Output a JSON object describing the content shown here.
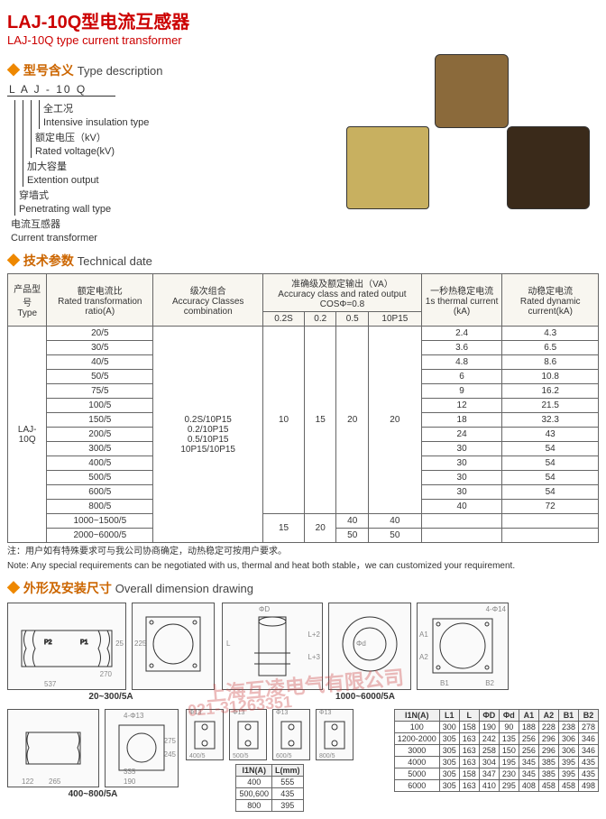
{
  "title_cn": "LAJ-10Q型电流互感器",
  "title_en": "LAJ-10Q type current transformer",
  "sections": {
    "typedesc_cn": "型号含义",
    "typedesc_en": "Type description",
    "tech_cn": "技术参数",
    "tech_en": "Technical date",
    "dim_cn": "外形及安装尺寸",
    "dim_en": "Overall dimension drawing"
  },
  "type_letters": "L  A  J  -  10  Q",
  "type_legend": [
    {
      "cn": "全工况",
      "en": "Intensive insulation type"
    },
    {
      "cn": "额定电压（kV）",
      "en": "Rated voltage(kV)"
    },
    {
      "cn": "加大容量",
      "en": "Extention output"
    },
    {
      "cn": "穿墙式",
      "en": "Penetrating wall type"
    },
    {
      "cn": "电流互感器",
      "en": "Current transformer"
    }
  ],
  "tech_header": {
    "type_cn": "产品型号",
    "type_en": "Type",
    "ratio_cn": "额定电流比",
    "ratio_en": "Rated transformation ratio(A)",
    "acc_cn": "级次组合",
    "acc_en": "Accuracy Classes combination",
    "out_cn": "准确级及额定输出（VA）",
    "out_en": "Accuracy class and rated output COSΦ=0.8",
    "out_cols": [
      "0.2S",
      "0.2",
      "0.5",
      "10P15"
    ],
    "th1s_cn": "一秒热稳定电流",
    "th1s_en": "1s thermal current (kA)",
    "dyn_cn": "动稳定电流",
    "dyn_en": "Rated dynamic current(kA)"
  },
  "type_name": "LAJ-10Q",
  "acc_combos": [
    "0.2S/10P15",
    "0.2/10P15",
    "0.5/10P15",
    "10P15/10P15"
  ],
  "out_vals1": [
    "10",
    "15",
    "20",
    "20"
  ],
  "tech_rows": [
    {
      "r": "20/5",
      "th": "2.4",
      "dy": "4.3"
    },
    {
      "r": "30/5",
      "th": "3.6",
      "dy": "6.5"
    },
    {
      "r": "40/5",
      "th": "4.8",
      "dy": "8.6"
    },
    {
      "r": "50/5",
      "th": "6",
      "dy": "10.8"
    },
    {
      "r": "75/5",
      "th": "9",
      "dy": "16.2"
    },
    {
      "r": "100/5",
      "th": "12",
      "dy": "21.5"
    },
    {
      "r": "150/5",
      "th": "18",
      "dy": "32.3"
    },
    {
      "r": "200/5",
      "th": "24",
      "dy": "43"
    },
    {
      "r": "300/5",
      "th": "30",
      "dy": "54"
    },
    {
      "r": "400/5",
      "th": "30",
      "dy": "54"
    },
    {
      "r": "500/5",
      "th": "30",
      "dy": "54"
    },
    {
      "r": "600/5",
      "th": "30",
      "dy": "54"
    },
    {
      "r": "800/5",
      "th": "40",
      "dy": "72"
    }
  ],
  "tech_rows2": [
    {
      "r": "1000~1500/5",
      "o": [
        "15",
        "20",
        "40",
        "40"
      ],
      "th": "",
      "dy": ""
    },
    {
      "r": "2000~6000/5",
      "o": [
        "",
        "",
        "50",
        "50"
      ],
      "th": "",
      "dy": ""
    }
  ],
  "note_cn": "注：用户如有特殊要求可与我公司协商确定，动热稳定可按用户要求。",
  "note_en": "Note: Any special requirements can be negotiated with us, thermal and heat both stable，we can customized your requirement.",
  "watermark1": "上海互凌电气有限公司",
  "watermark2": "021-31263351",
  "dim": {
    "range1_label": "20~300/5A",
    "range2_label": "400~800/5A",
    "range3_label": "1000~6000/5A",
    "nums1": {
      "w": "537",
      "wb": "270",
      "h": "225",
      "a": "25"
    },
    "nums2": {
      "a": "122",
      "b": "265",
      "c": "190",
      "d": "335",
      "h": "275",
      "hh": "245"
    },
    "mini_nums": [
      "400/5",
      "500/5",
      "600/5",
      "800/5"
    ],
    "mini_dim": {
      "a": "40",
      "b": "40",
      "c": "95",
      "d": "80",
      "e": "53",
      "p": "Φ13",
      "pp": "4-Φ13"
    },
    "tableA": {
      "hdr": [
        "I1N(A)",
        "L(mm)"
      ],
      "rows": [
        [
          "400",
          "555"
        ],
        [
          "500,600",
          "435"
        ],
        [
          "800",
          "395"
        ]
      ]
    },
    "big_labels": {
      "L": "L",
      "L2": "L+2",
      "L3": "L+3",
      "D": "ΦD",
      "d": "Φd",
      "A1": "A1",
      "A2": "A2",
      "B1": "B1",
      "B2": "B2",
      "p": "4-Φ14"
    },
    "tableB": {
      "hdr": [
        "I1N(A)",
        "L1",
        "L",
        "ΦD",
        "Φd",
        "A1",
        "A2",
        "B1",
        "B2"
      ],
      "rows": [
        [
          "100",
          "300",
          "158",
          "190",
          "90",
          "188",
          "228",
          "238",
          "278"
        ],
        [
          "1200-2000",
          "305",
          "163",
          "242",
          "135",
          "256",
          "296",
          "306",
          "346"
        ],
        [
          "3000",
          "305",
          "163",
          "258",
          "150",
          "256",
          "296",
          "306",
          "346"
        ],
        [
          "4000",
          "305",
          "163",
          "304",
          "195",
          "345",
          "385",
          "395",
          "435"
        ],
        [
          "5000",
          "305",
          "158",
          "347",
          "230",
          "345",
          "385",
          "395",
          "435"
        ],
        [
          "6000",
          "305",
          "163",
          "410",
          "295",
          "408",
          "458",
          "458",
          "498"
        ]
      ]
    }
  },
  "colors": {
    "red": "#cc0000",
    "orange": "#cc6600",
    "border": "#666666",
    "bg_header": "#f8f6f0"
  }
}
